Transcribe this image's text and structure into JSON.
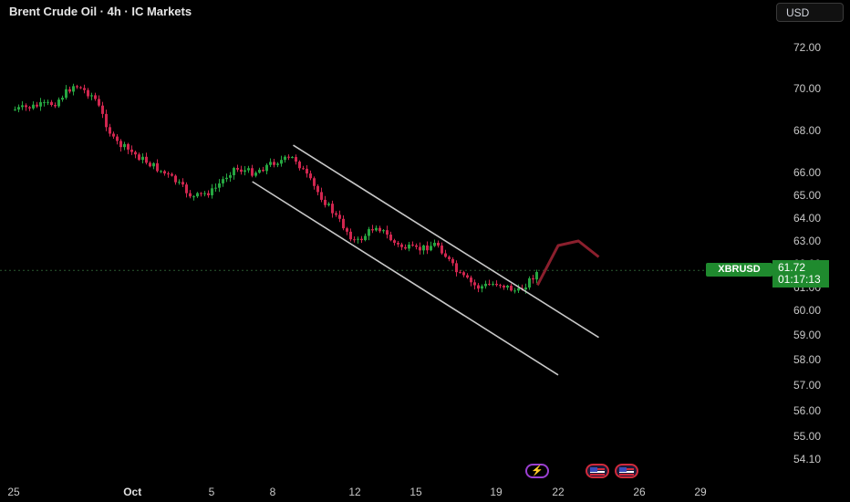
{
  "header": {
    "title": "Brent Crude Oil · 4h · IC Markets",
    "currency": "USD"
  },
  "price_label": {
    "symbol": "XBRUSD",
    "price": "61.72",
    "countdown": "01:17:13"
  },
  "colors": {
    "up": "#26a641",
    "down": "#d0264f",
    "channel": "#c8c8c8",
    "arrow": "#8b1f2d",
    "badge": "#1f8a2e"
  },
  "icons": [
    "lightning-icon",
    "us-flag-icon",
    "us-flag-icon"
  ],
  "chart_data": {
    "type": "candlestick",
    "title": "Brent Crude Oil · 4h · IC Markets",
    "y_axis": {
      "ticks": [
        "72.00",
        "70.00",
        "68.00",
        "66.00",
        "65.00",
        "64.00",
        "63.00",
        "62.00",
        "61.00",
        "60.00",
        "59.00",
        "58.00",
        "57.00",
        "56.00",
        "55.00",
        "54.10"
      ],
      "scale": "log",
      "range": [
        54.1,
        72.0
      ]
    },
    "x_axis": {
      "ticks": [
        "25",
        "Oct",
        "5",
        "8",
        "12",
        "15",
        "19",
        "22",
        "26",
        "29"
      ],
      "range": [
        "Sep 25",
        "Oct 29"
      ]
    },
    "current_price": 61.72,
    "channel": {
      "upper": [
        {
          "date": "Oct 9",
          "price": 67.3
        },
        {
          "date": "Oct 24",
          "price": 58.9
        }
      ],
      "lower": [
        {
          "date": "Oct 7",
          "price": 65.6
        },
        {
          "date": "Oct 22",
          "price": 57.4
        }
      ]
    },
    "projection_arrow": [
      {
        "date": "Oct 21",
        "price": 61.1
      },
      {
        "date": "Oct 22",
        "price": 62.8
      },
      {
        "date": "Oct 23",
        "price": 63.0
      },
      {
        "date": "Oct 24",
        "price": 62.3
      }
    ],
    "close_path": [
      {
        "date": "Sep 25",
        "price": 69.0
      },
      {
        "date": "Sep 27",
        "price": 69.3
      },
      {
        "date": "Sep 28",
        "price": 70.2
      },
      {
        "date": "Sep 29",
        "price": 69.6
      },
      {
        "date": "Sep 30",
        "price": 67.5
      },
      {
        "date": "Oct 1",
        "price": 66.9
      },
      {
        "date": "Oct 2",
        "price": 66.3
      },
      {
        "date": "Oct 3",
        "price": 65.7
      },
      {
        "date": "Oct 4",
        "price": 64.9
      },
      {
        "date": "Oct 5",
        "price": 65.2
      },
      {
        "date": "Oct 6",
        "price": 66.2
      },
      {
        "date": "Oct 7",
        "price": 66.0
      },
      {
        "date": "Oct 8",
        "price": 66.5
      },
      {
        "date": "Oct 9",
        "price": 66.7
      },
      {
        "date": "Oct 10",
        "price": 65.3
      },
      {
        "date": "Oct 11",
        "price": 64.1
      },
      {
        "date": "Oct 12",
        "price": 62.9
      },
      {
        "date": "Oct 13",
        "price": 63.7
      },
      {
        "date": "Oct 14",
        "price": 62.8
      },
      {
        "date": "Oct 15",
        "price": 62.6
      },
      {
        "date": "Oct 16",
        "price": 62.9
      },
      {
        "date": "Oct 17",
        "price": 61.6
      },
      {
        "date": "Oct 18",
        "price": 61.0
      },
      {
        "date": "Oct 19",
        "price": 61.2
      },
      {
        "date": "Oct 20",
        "price": 60.8
      },
      {
        "date": "Oct 21",
        "price": 61.72
      }
    ]
  }
}
